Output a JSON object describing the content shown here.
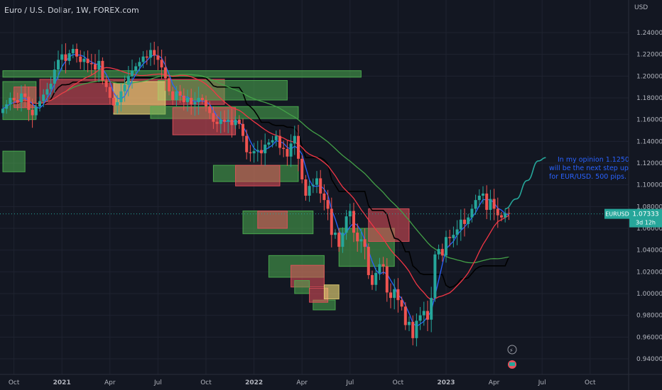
{
  "header": {
    "title": "Euro / U.S. Dollar, 1W, FOREX.com"
  },
  "axis": {
    "currency": "USD"
  },
  "colors": {
    "background": "#131722",
    "up": "#26a69a",
    "down": "#ef5350",
    "zone_green": "#4caf50",
    "zone_red": "#e8505b",
    "zone_yellow": "#e6d274",
    "ma_fast": "#2962ff",
    "ma_mid": "#f23645",
    "ma_slow": "#43a047",
    "baseline": "#000000",
    "projection": "#26a69a",
    "note": "#2962ff"
  },
  "annotation": {
    "text": "In my opinion 1.1250 will be the next step up for EUR/USD. 500 pips."
  },
  "price_label": {
    "symbol": "EURUSD",
    "price": "1.07333",
    "countdown": "3d 12h"
  },
  "chart_data": {
    "type": "candlestick",
    "title": "Euro / U.S. Dollar, 1W, FOREX.com",
    "yticks": [
      "1.24000",
      "1.22000",
      "1.20000",
      "1.18000",
      "1.16000",
      "1.14000",
      "1.12000",
      "1.10000",
      "1.08000",
      "1.06000",
      "1.04000",
      "1.02000",
      "1.00000",
      "0.98000",
      "0.96000",
      "0.94000"
    ],
    "ylim": [
      0.93,
      1.255
    ],
    "xticks": [
      {
        "label": "Oct",
        "idx": 3
      },
      {
        "label": "2021",
        "idx": 16
      },
      {
        "label": "Apr",
        "idx": 29
      },
      {
        "label": "Jul",
        "idx": 42
      },
      {
        "label": "Oct",
        "idx": 55
      },
      {
        "label": "2022",
        "idx": 68
      },
      {
        "label": "Apr",
        "idx": 81
      },
      {
        "label": "Jul",
        "idx": 94
      },
      {
        "label": "Oct",
        "idx": 107
      },
      {
        "label": "2023",
        "idx": 120
      },
      {
        "label": "Apr",
        "idx": 133
      },
      {
        "label": "Jul",
        "idx": 146
      },
      {
        "label": "Oct",
        "idx": 159
      }
    ],
    "closes": [
      1.17,
      1.174,
      1.18,
      1.178,
      1.176,
      1.184,
      1.181,
      1.169,
      1.164,
      1.172,
      1.177,
      1.183,
      1.188,
      1.193,
      1.206,
      1.215,
      1.22,
      1.214,
      1.221,
      1.225,
      1.218,
      1.213,
      1.216,
      1.212,
      1.211,
      1.206,
      1.214,
      1.196,
      1.19,
      1.18,
      1.173,
      1.176,
      1.186,
      1.192,
      1.2,
      1.205,
      1.209,
      1.213,
      1.218,
      1.217,
      1.224,
      1.219,
      1.215,
      1.208,
      1.198,
      1.186,
      1.178,
      1.186,
      1.182,
      1.176,
      1.18,
      1.174,
      1.176,
      1.18,
      1.178,
      1.172,
      1.166,
      1.158,
      1.156,
      1.16,
      1.158,
      1.16,
      1.155,
      1.16,
      1.156,
      1.145,
      1.13,
      1.129,
      1.131,
      1.132,
      1.129,
      1.137,
      1.139,
      1.141,
      1.145,
      1.134,
      1.133,
      1.126,
      1.138,
      1.145,
      1.124,
      1.105,
      1.09,
      1.099,
      1.1,
      1.106,
      1.092,
      1.086,
      1.078,
      1.054,
      1.056,
      1.043,
      1.056,
      1.071,
      1.076,
      1.056,
      1.048,
      1.05,
      1.043,
      1.017,
      1.008,
      1.019,
      1.027,
      1.025,
      1.001,
      0.996,
      1.004,
      0.994,
      0.988,
      0.971,
      0.974,
      0.959,
      0.975,
      0.98,
      0.984,
      0.976,
      0.996,
      1.036,
      1.041,
      1.035,
      1.052,
      1.051,
      1.054,
      1.059,
      1.068,
      1.064,
      1.07,
      1.078,
      1.086,
      1.09,
      1.092,
      1.077,
      1.087,
      1.078,
      1.072,
      1.07,
      1.074,
      1.0733
    ],
    "projection": [
      [
        136,
        1.078
      ],
      [
        139,
        1.087
      ],
      [
        142,
        1.104
      ],
      [
        145,
        1.122
      ],
      [
        147,
        1.125
      ]
    ],
    "series": [
      {
        "name": "",
        "values_desc": "fast MA",
        "color": "ma_fast"
      },
      {
        "name": "",
        "values_desc": "mid MA",
        "color": "ma_mid"
      },
      {
        "name": "",
        "values_desc": "slow MA",
        "color": "ma_slow"
      },
      {
        "name": "",
        "values_desc": "baseline",
        "color": "baseline"
      }
    ],
    "zones": [
      {
        "type": "green",
        "i0": 0,
        "i1": 97,
        "y0": 1.199,
        "y1": 1.205
      },
      {
        "type": "green",
        "i0": 0,
        "i1": 9,
        "y0": 1.16,
        "y1": 1.195
      },
      {
        "type": "red",
        "i0": 3,
        "i1": 9,
        "y0": 1.171,
        "y1": 1.19
      },
      {
        "type": "red",
        "i0": 10,
        "i1": 60,
        "y0": 1.174,
        "y1": 1.197
      },
      {
        "type": "green",
        "i0": 42,
        "i1": 77,
        "y0": 1.178,
        "y1": 1.196
      },
      {
        "type": "yellow",
        "i0": 30,
        "i1": 44,
        "y0": 1.165,
        "y1": 1.195
      },
      {
        "type": "green",
        "i0": 40,
        "i1": 80,
        "y0": 1.161,
        "y1": 1.172
      },
      {
        "type": "red",
        "i0": 46,
        "i1": 63,
        "y0": 1.146,
        "y1": 1.171
      },
      {
        "type": "green",
        "i0": 0,
        "i1": 6,
        "y0": 1.112,
        "y1": 1.131
      },
      {
        "type": "green",
        "i0": 57,
        "i1": 80,
        "y0": 1.103,
        "y1": 1.118
      },
      {
        "type": "red",
        "i0": 63,
        "i1": 75,
        "y0": 1.099,
        "y1": 1.118
      },
      {
        "type": "green",
        "i0": 65,
        "i1": 84,
        "y0": 1.055,
        "y1": 1.076
      },
      {
        "type": "red",
        "i0": 69,
        "i1": 77,
        "y0": 1.06,
        "y1": 1.076
      },
      {
        "type": "green",
        "i0": 72,
        "i1": 87,
        "y0": 1.015,
        "y1": 1.035
      },
      {
        "type": "red",
        "i0": 78,
        "i1": 87,
        "y0": 1.006,
        "y1": 1.026
      },
      {
        "type": "green",
        "i0": 79,
        "i1": 83,
        "y0": 1.0,
        "y1": 1.012
      },
      {
        "type": "green",
        "i0": 84,
        "i1": 90,
        "y0": 0.985,
        "y1": 0.994
      },
      {
        "type": "red",
        "i0": 83,
        "i1": 88,
        "y0": 0.992,
        "y1": 1.005
      },
      {
        "type": "yellow",
        "i0": 87,
        "i1": 91,
        "y0": 0.995,
        "y1": 1.008
      },
      {
        "type": "green",
        "i0": 91,
        "i1": 106,
        "y0": 1.025,
        "y1": 1.06
      },
      {
        "type": "red",
        "i0": 99,
        "i1": 110,
        "y0": 1.048,
        "y1": 1.078
      }
    ]
  }
}
